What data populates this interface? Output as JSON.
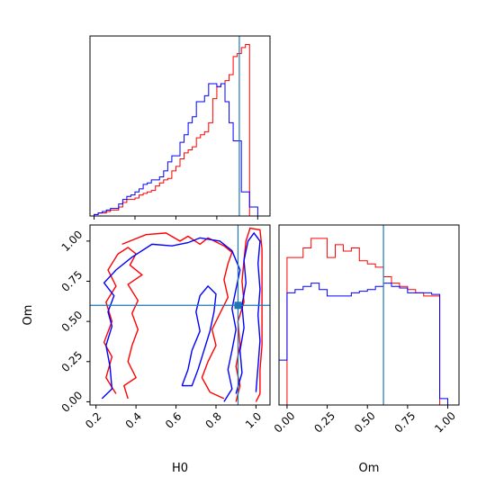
{
  "chart_data": {
    "type": "corner",
    "colors": {
      "series_a": "#ff0000",
      "series_b": "#0000ff",
      "truth": "#1f77b4"
    },
    "truth": {
      "H0": 0.91,
      "Om": 0.6
    },
    "x_ticks_H0": [
      "0.2",
      "0.4",
      "0.6",
      "0.8",
      "1.0"
    ],
    "x_ticks_Om": [
      "0.00",
      "0.25",
      "0.50",
      "0.75",
      "1.00"
    ],
    "y_ticks_Om": [
      "0.00",
      "0.25",
      "0.50",
      "0.75",
      "1.00"
    ],
    "xlabel_H0": "H0",
    "xlabel_Om": "Om",
    "ylabel_Om": "Om",
    "hist_H0": {
      "xlim": [
        0.18,
        1.06
      ],
      "bin_edges": [
        0.18,
        0.2,
        0.22,
        0.24,
        0.26,
        0.28,
        0.3,
        0.32,
        0.34,
        0.36,
        0.38,
        0.4,
        0.42,
        0.44,
        0.46,
        0.48,
        0.5,
        0.52,
        0.54,
        0.56,
        0.58,
        0.6,
        0.62,
        0.64,
        0.66,
        0.68,
        0.7,
        0.72,
        0.74,
        0.76,
        0.78,
        0.8,
        0.82,
        0.84,
        0.86,
        0.88,
        0.9,
        0.92,
        0.94,
        0.96,
        0.98,
        1.0,
        1.02,
        1.04
      ],
      "series": [
        {
          "name": "",
          "values": [
            0,
            1,
            2,
            2,
            3,
            4,
            4,
            6,
            9,
            11,
            11,
            12,
            14,
            15,
            16,
            17,
            20,
            22,
            24,
            25,
            30,
            33,
            38,
            42,
            44,
            46,
            52,
            54,
            56,
            62,
            78,
            86,
            88,
            90,
            94,
            106,
            108,
            112,
            114,
            0,
            0,
            0,
            0
          ]
        },
        {
          "name": "",
          "values": [
            0,
            1,
            2,
            3,
            4,
            5,
            5,
            8,
            11,
            13,
            14,
            16,
            18,
            21,
            22,
            24,
            24,
            26,
            30,
            36,
            40,
            40,
            49,
            54,
            62,
            66,
            76,
            76,
            80,
            88,
            88,
            86,
            88,
            76,
            62,
            50,
            50,
            16,
            16,
            6,
            6,
            0,
            0
          ]
        }
      ]
    },
    "hist_Om": {
      "xlim": [
        -0.05,
        1.07
      ],
      "bin_edges": [
        -0.05,
        0.0,
        0.05,
        0.1,
        0.15,
        0.2,
        0.25,
        0.3,
        0.35,
        0.4,
        0.45,
        0.5,
        0.55,
        0.6,
        0.65,
        0.7,
        0.75,
        0.8,
        0.85,
        0.9,
        0.95,
        1.0,
        1.05
      ],
      "series": [
        {
          "name": "",
          "values": [
            0,
            92,
            92,
            98,
            104,
            104,
            92,
            100,
            96,
            98,
            90,
            88,
            86,
            80,
            76,
            74,
            72,
            70,
            68,
            68,
            0,
            0
          ]
        },
        {
          "name": "",
          "values": [
            28,
            70,
            72,
            74,
            76,
            72,
            68,
            68,
            68,
            70,
            71,
            72,
            74,
            76,
            74,
            73,
            70,
            70,
            70,
            69,
            4,
            0
          ]
        }
      ]
    },
    "contours_H0_Om": {
      "xlim": [
        0.17,
        1.07
      ],
      "ylim": [
        -0.02,
        1.1
      ],
      "series": [
        {
          "name": "",
          "paths": [
            [
              [
                0.3,
                0.05
              ],
              [
                0.25,
                0.15
              ],
              [
                0.28,
                0.28
              ],
              [
                0.24,
                0.37
              ],
              [
                0.28,
                0.5
              ],
              [
                0.25,
                0.62
              ],
              [
                0.3,
                0.72
              ],
              [
                0.26,
                0.82
              ],
              [
                0.31,
                0.92
              ],
              [
                0.36,
                0.96
              ],
              [
                0.4,
                0.92
              ],
              [
                0.37,
                0.85
              ],
              [
                0.43,
                0.79
              ],
              [
                0.36,
                0.73
              ],
              [
                0.41,
                0.63
              ],
              [
                0.38,
                0.55
              ],
              [
                0.41,
                0.45
              ],
              [
                0.38,
                0.35
              ],
              [
                0.36,
                0.25
              ],
              [
                0.4,
                0.15
              ],
              [
                0.34,
                0.1
              ],
              [
                0.36,
                0.02
              ]
            ],
            [
              [
                0.33,
                0.98
              ],
              [
                0.45,
                1.04
              ],
              [
                0.55,
                1.05
              ],
              [
                0.62,
                1.0
              ],
              [
                0.66,
                1.03
              ],
              [
                0.72,
                0.98
              ],
              [
                0.76,
                1.02
              ],
              [
                0.84,
                0.97
              ],
              [
                0.88,
                0.93
              ],
              [
                0.86,
                0.86
              ],
              [
                0.84,
                0.76
              ],
              [
                0.86,
                0.65
              ],
              [
                0.82,
                0.55
              ],
              [
                0.78,
                0.45
              ],
              [
                0.8,
                0.35
              ],
              [
                0.76,
                0.25
              ],
              [
                0.73,
                0.15
              ],
              [
                0.77,
                0.06
              ],
              [
                0.84,
                0.02
              ]
            ],
            [
              [
                0.9,
                0.0
              ],
              [
                0.92,
                0.1
              ],
              [
                0.9,
                0.22
              ],
              [
                0.92,
                0.35
              ],
              [
                0.91,
                0.5
              ],
              [
                0.94,
                0.62
              ],
              [
                0.93,
                0.75
              ],
              [
                0.94,
                0.88
              ],
              [
                0.95,
                1.0
              ],
              [
                0.97,
                1.08
              ],
              [
                1.02,
                1.07
              ],
              [
                1.03,
                0.95
              ],
              [
                1.03,
                0.8
              ],
              [
                1.03,
                0.65
              ],
              [
                1.03,
                0.5
              ],
              [
                1.03,
                0.35
              ],
              [
                1.02,
                0.2
              ],
              [
                1.02,
                0.05
              ],
              [
                1.0,
                0.0
              ]
            ]
          ]
        },
        {
          "name": "",
          "paths": [
            [
              [
                0.23,
                0.02
              ],
              [
                0.28,
                0.08
              ],
              [
                0.27,
                0.22
              ],
              [
                0.25,
                0.35
              ],
              [
                0.28,
                0.47
              ],
              [
                0.26,
                0.56
              ],
              [
                0.29,
                0.66
              ],
              [
                0.24,
                0.74
              ],
              [
                0.3,
                0.82
              ],
              [
                0.38,
                0.9
              ],
              [
                0.48,
                0.98
              ],
              [
                0.58,
                0.97
              ],
              [
                0.66,
                0.99
              ],
              [
                0.72,
                1.02
              ],
              [
                0.82,
                1.0
              ],
              [
                0.88,
                0.94
              ],
              [
                0.92,
                0.82
              ],
              [
                0.9,
                0.7
              ],
              [
                0.88,
                0.58
              ],
              [
                0.9,
                0.45
              ],
              [
                0.88,
                0.32
              ],
              [
                0.86,
                0.2
              ],
              [
                0.88,
                0.08
              ],
              [
                0.84,
                0.0
              ]
            ],
            [
              [
                0.63,
                0.1
              ],
              [
                0.66,
                0.2
              ],
              [
                0.68,
                0.32
              ],
              [
                0.72,
                0.44
              ],
              [
                0.7,
                0.56
              ],
              [
                0.72,
                0.66
              ],
              [
                0.76,
                0.72
              ],
              [
                0.8,
                0.67
              ],
              [
                0.79,
                0.56
              ],
              [
                0.77,
                0.44
              ],
              [
                0.74,
                0.32
              ],
              [
                0.71,
                0.2
              ],
              [
                0.68,
                0.1
              ],
              [
                0.63,
                0.1
              ]
            ],
            [
              [
                0.9,
                0.05
              ],
              [
                0.93,
                0.18
              ],
              [
                0.92,
                0.32
              ],
              [
                0.94,
                0.46
              ],
              [
                0.93,
                0.6
              ],
              [
                0.95,
                0.74
              ],
              [
                0.94,
                0.88
              ],
              [
                0.96,
                1.0
              ],
              [
                0.99,
                1.05
              ],
              [
                1.02,
                1.0
              ],
              [
                1.01,
                0.86
              ],
              [
                1.02,
                0.7
              ],
              [
                1.01,
                0.54
              ],
              [
                1.02,
                0.38
              ],
              [
                1.01,
                0.22
              ],
              [
                1.0,
                0.06
              ]
            ]
          ]
        }
      ]
    }
  }
}
